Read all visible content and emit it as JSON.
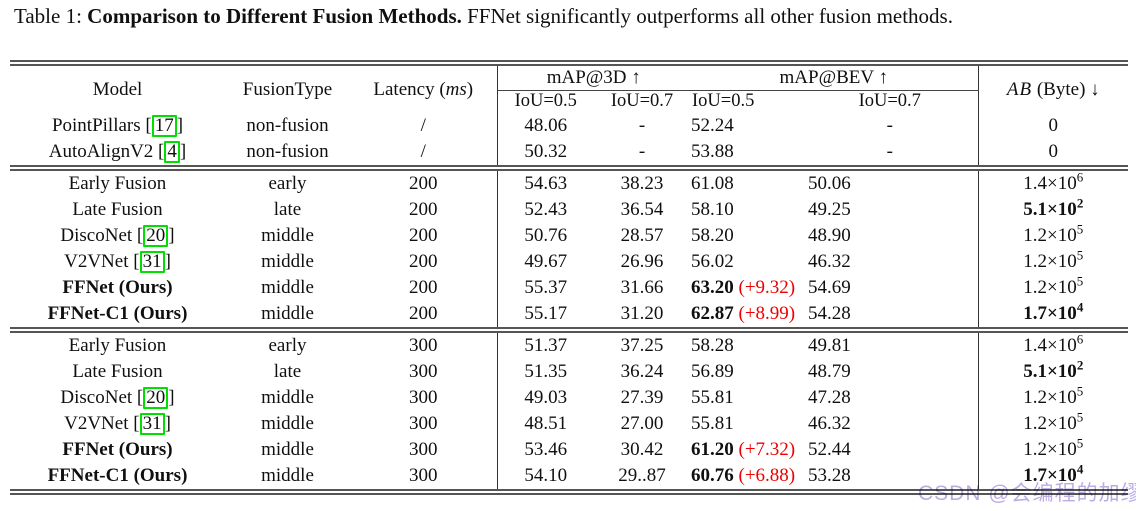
{
  "caption": {
    "prefix": "Table 1: ",
    "bold": "Comparison to Different Fusion Methods.",
    "rest": " FFNet significantly outperforms all other fusion methods."
  },
  "header": {
    "model": "Model",
    "fusion_type": "FusionType",
    "latency_pre": "Latency (",
    "latency_unit": "ms",
    "latency_post": ")",
    "map3d": "mAP@3D ↑",
    "mapbev": "mAP@BEV ↑",
    "iou_3d_05": "IoU=0.5",
    "iou_3d_07": "IoU=0.7",
    "iou_bev_05": "IoU=0.5",
    "iou_bev_07": "IoU=0.7",
    "ab_cal": "AB",
    "ab_rest": " (Byte) ↓"
  },
  "notation": {
    "cite_open": "[",
    "cite_close": "]",
    "times_base": "×10"
  },
  "colors": {
    "accent_green": "#00e000",
    "delta_red": "#ee0000",
    "watermark": "#b4a4e0"
  },
  "watermark_text": "CSDN @会编程的加缪",
  "rows": [
    {
      "model": "PointPillars",
      "cite": "17",
      "bold": false,
      "fusion": "non-fusion",
      "latency": "/",
      "iou3d_05": "48.06",
      "iou3d_07": "-",
      "bev_05": "52.24",
      "bev_05_delta": "",
      "bev_05_bold": false,
      "bev_07": "-",
      "ab_mant": "0",
      "ab_exp": "",
      "ab_bold": false,
      "section_start": false
    },
    {
      "model": "AutoAlignV2",
      "cite": "4",
      "bold": false,
      "fusion": "non-fusion",
      "latency": "/",
      "iou3d_05": "50.32",
      "iou3d_07": "-",
      "bev_05": "53.88",
      "bev_05_delta": "",
      "bev_05_bold": false,
      "bev_07": "-",
      "ab_mant": "0",
      "ab_exp": "",
      "ab_bold": false,
      "section_start": false
    },
    {
      "model": "Early Fusion",
      "cite": "",
      "bold": false,
      "fusion": "early",
      "latency": "200",
      "iou3d_05": "54.63",
      "iou3d_07": "38.23",
      "bev_05": "61.08",
      "bev_05_delta": "",
      "bev_05_bold": false,
      "bev_07": "50.06",
      "ab_mant": "1.4",
      "ab_exp": "6",
      "ab_bold": false,
      "section_start": true
    },
    {
      "model": "Late Fusion",
      "cite": "",
      "bold": false,
      "fusion": "late",
      "latency": "200",
      "iou3d_05": "52.43",
      "iou3d_07": "36.54",
      "bev_05": "58.10",
      "bev_05_delta": "",
      "bev_05_bold": false,
      "bev_07": "49.25",
      "ab_mant": "5.1",
      "ab_exp": "2",
      "ab_bold": true,
      "section_start": false
    },
    {
      "model": "DiscoNet",
      "cite": "20",
      "bold": false,
      "fusion": "middle",
      "latency": "200",
      "iou3d_05": "50.76",
      "iou3d_07": "28.57",
      "bev_05": "58.20",
      "bev_05_delta": "",
      "bev_05_bold": false,
      "bev_07": "48.90",
      "ab_mant": "1.2",
      "ab_exp": "5",
      "ab_bold": false,
      "section_start": false
    },
    {
      "model": "V2VNet",
      "cite": "31",
      "bold": false,
      "fusion": "middle",
      "latency": "200",
      "iou3d_05": "49.67",
      "iou3d_07": "26.96",
      "bev_05": "56.02",
      "bev_05_delta": "",
      "bev_05_bold": false,
      "bev_07": "46.32",
      "ab_mant": "1.2",
      "ab_exp": "5",
      "ab_bold": false,
      "section_start": false
    },
    {
      "model": "FFNet (Ours)",
      "cite": "",
      "bold": true,
      "fusion": "middle",
      "latency": "200",
      "iou3d_05": "55.37",
      "iou3d_07": "31.66",
      "bev_05": "63.20",
      "bev_05_delta": "(+9.32)",
      "bev_05_bold": true,
      "bev_07": "54.69",
      "ab_mant": "1.2",
      "ab_exp": "5",
      "ab_bold": false,
      "section_start": false
    },
    {
      "model": "FFNet-C1 (Ours)",
      "cite": "",
      "bold": true,
      "fusion": "middle",
      "latency": "200",
      "iou3d_05": "55.17",
      "iou3d_07": "31.20",
      "bev_05": "62.87",
      "bev_05_delta": "(+8.99)",
      "bev_05_bold": true,
      "bev_07": "54.28",
      "ab_mant": "1.7",
      "ab_exp": "4",
      "ab_bold": true,
      "section_start": false
    },
    {
      "model": "Early Fusion",
      "cite": "",
      "bold": false,
      "fusion": "early",
      "latency": "300",
      "iou3d_05": "51.37",
      "iou3d_07": "37.25",
      "bev_05": "58.28",
      "bev_05_delta": "",
      "bev_05_bold": false,
      "bev_07": "49.81",
      "ab_mant": "1.4",
      "ab_exp": "6",
      "ab_bold": false,
      "section_start": true
    },
    {
      "model": "Late Fusion",
      "cite": "",
      "bold": false,
      "fusion": "late",
      "latency": "300",
      "iou3d_05": "51.35",
      "iou3d_07": "36.24",
      "bev_05": "56.89",
      "bev_05_delta": "",
      "bev_05_bold": false,
      "bev_07": "48.79",
      "ab_mant": "5.1",
      "ab_exp": "2",
      "ab_bold": true,
      "section_start": false
    },
    {
      "model": "DiscoNet",
      "cite": "20",
      "bold": false,
      "fusion": "middle",
      "latency": "300",
      "iou3d_05": "49.03",
      "iou3d_07": "27.39",
      "bev_05": "55.81",
      "bev_05_delta": "",
      "bev_05_bold": false,
      "bev_07": "47.28",
      "ab_mant": "1.2",
      "ab_exp": "5",
      "ab_bold": false,
      "section_start": false
    },
    {
      "model": "V2VNet",
      "cite": "31",
      "bold": false,
      "fusion": "middle",
      "latency": "300",
      "iou3d_05": "48.51",
      "iou3d_07": "27.00",
      "bev_05": "55.81",
      "bev_05_delta": "",
      "bev_05_bold": false,
      "bev_07": "46.32",
      "ab_mant": "1.2",
      "ab_exp": "5",
      "ab_bold": false,
      "section_start": false
    },
    {
      "model": "FFNet (Ours)",
      "cite": "",
      "bold": true,
      "fusion": "middle",
      "latency": "300",
      "iou3d_05": "53.46",
      "iou3d_07": "30.42",
      "bev_05": "61.20",
      "bev_05_delta": "(+7.32)",
      "bev_05_bold": true,
      "bev_07": "52.44",
      "ab_mant": "1.2",
      "ab_exp": "5",
      "ab_bold": false,
      "section_start": false
    },
    {
      "model": "FFNet-C1 (Ours)",
      "cite": "",
      "bold": true,
      "fusion": "middle",
      "latency": "300",
      "iou3d_05": "54.10",
      "iou3d_07": "29..87",
      "bev_05": "60.76",
      "bev_05_delta": "(+6.88)",
      "bev_05_bold": true,
      "bev_07": "53.28",
      "ab_mant": "1.7",
      "ab_exp": "4",
      "ab_bold": true,
      "section_start": false
    }
  ]
}
